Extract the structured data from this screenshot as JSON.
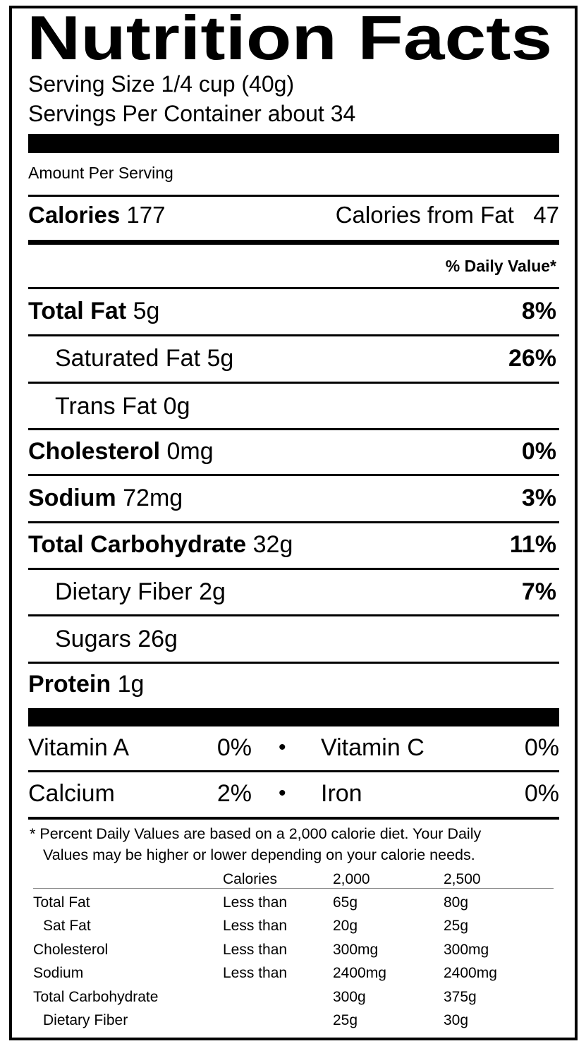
{
  "title": "Nutrition Facts",
  "serving_size": "Serving Size 1/4 cup (40g)",
  "servings_per_container": "Servings Per Container about 34",
  "amount_per_serving": "Amount Per Serving",
  "calories": {
    "label": "Calories",
    "value": "177",
    "from_fat_label": "Calories from Fat",
    "from_fat_value": "47"
  },
  "daily_value_header": "% Daily Value*",
  "nutrients": [
    {
      "label": "Total Fat",
      "amount": "5g",
      "dv": "8%",
      "bold": true
    },
    {
      "label": "Saturated Fat",
      "amount": "5g",
      "dv": "26%",
      "bold": false
    },
    {
      "label": "Trans Fat",
      "amount": "0g",
      "dv": "",
      "bold": false
    },
    {
      "label": "Cholesterol",
      "amount": "0mg",
      "dv": "0%",
      "bold": true
    },
    {
      "label": "Sodium",
      "amount": "72mg",
      "dv": "3%",
      "bold": true
    },
    {
      "label": "Total Carbohydrate",
      "amount": "32g",
      "dv": "11%",
      "bold": true
    },
    {
      "label": "Dietary Fiber",
      "amount": "2g",
      "dv": "7%",
      "bold": false
    },
    {
      "label": "Sugars",
      "amount": "26g",
      "dv": "",
      "bold": false
    },
    {
      "label": "Protein",
      "amount": "1g",
      "dv": "",
      "bold": true
    }
  ],
  "vitamins": [
    {
      "left_label": "Vitamin A",
      "left_value": "0%",
      "right_label": "Vitamin C",
      "right_value": "0%"
    },
    {
      "left_label": "Calcium",
      "left_value": "2%",
      "right_label": "Iron",
      "right_value": "0%"
    }
  ],
  "bullet": "•",
  "footnote": {
    "asterisk": "*",
    "line1": "Percent Daily Values are based on a 2,000 calorie diet. Your Daily",
    "line2": "Values may be higher or lower depending on your calorie needs."
  },
  "reference_table": {
    "headers": [
      "",
      "Calories",
      "2,000",
      "2,500"
    ],
    "rows": [
      [
        "Total Fat",
        "Less than",
        "65g",
        "80g"
      ],
      [
        "Sat Fat",
        "Less than",
        "20g",
        "25g"
      ],
      [
        "Cholesterol",
        "Less than",
        "300mg",
        "300mg"
      ],
      [
        "Sodium",
        "Less than",
        "2400mg",
        "2400mg"
      ],
      [
        "Total Carbohydrate",
        "",
        "300g",
        "375g"
      ],
      [
        "Dietary Fiber",
        "",
        "25g",
        "30g"
      ]
    ]
  }
}
